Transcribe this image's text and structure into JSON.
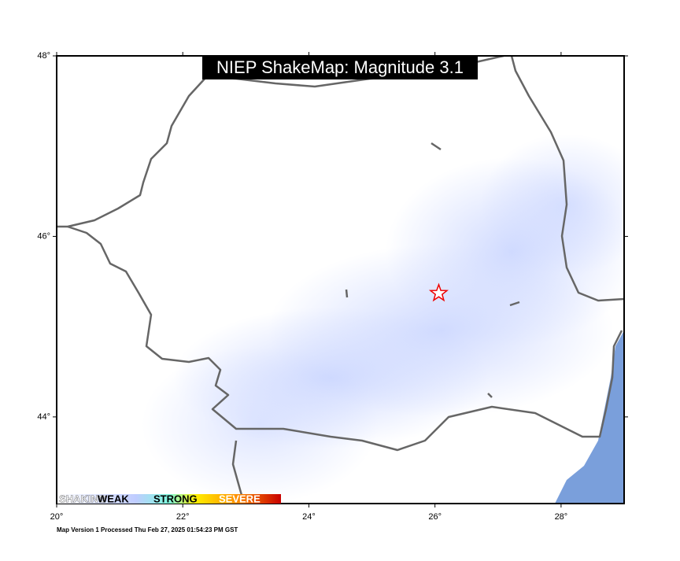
{
  "map": {
    "title": "NIEP ShakeMap: Magnitude 3.1",
    "lon_ticks": [
      {
        "value": 20,
        "label": "20°"
      },
      {
        "value": 22,
        "label": "22°"
      },
      {
        "value": 24,
        "label": "24°"
      },
      {
        "value": 26,
        "label": "26°"
      },
      {
        "value": 28,
        "label": "28°"
      }
    ],
    "lat_ticks": [
      {
        "value": 44,
        "label": "44°"
      },
      {
        "value": 46,
        "label": "46°"
      },
      {
        "value": 48,
        "label": "48°"
      }
    ],
    "xlim": [
      20,
      29
    ],
    "ylim": [
      43.04,
      48
    ],
    "epicenter": {
      "lon": 26.06,
      "lat": 45.37
    },
    "legend": [
      "SHAKING",
      "WEAK",
      "STRONG",
      "SEVERE"
    ],
    "footer": "Map Version 1 Processed Thu Feb 27, 2025 01:54:23 PM GST"
  }
}
